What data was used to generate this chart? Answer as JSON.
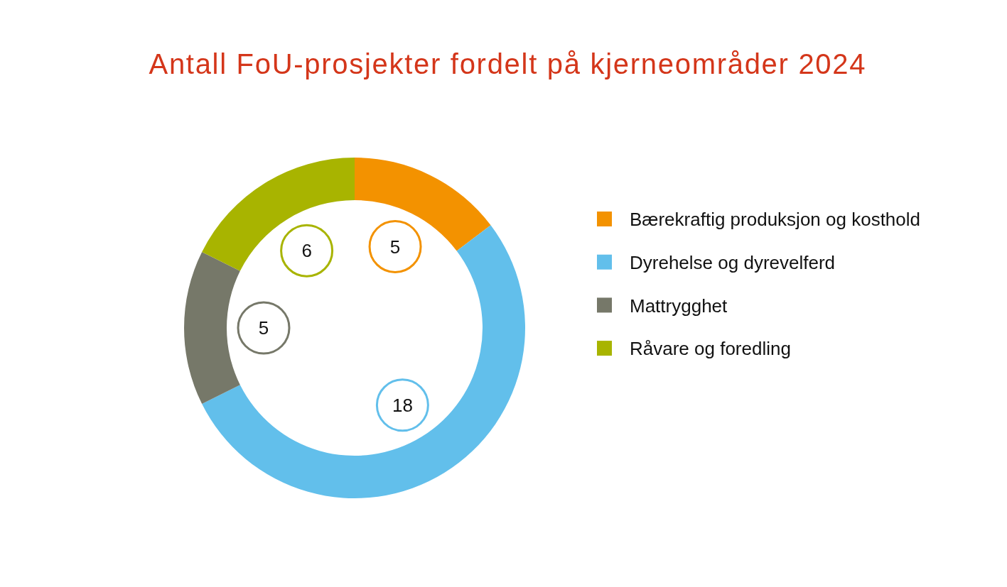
{
  "chart_data": {
    "type": "donut",
    "title": "Antall FoU-prosjekter fordelt på kjerneområder 2024",
    "categories": [
      "Bærekraftig produksjon og kosthold",
      "Dyrehelse og dyrevelferd",
      "Mattrygghet",
      "Råvare og foredling"
    ],
    "values": [
      5,
      18,
      5,
      6
    ],
    "colors": [
      "#f39200",
      "#62bfeb",
      "#767869",
      "#a8b400"
    ],
    "data_labels": true,
    "legend": "right"
  }
}
